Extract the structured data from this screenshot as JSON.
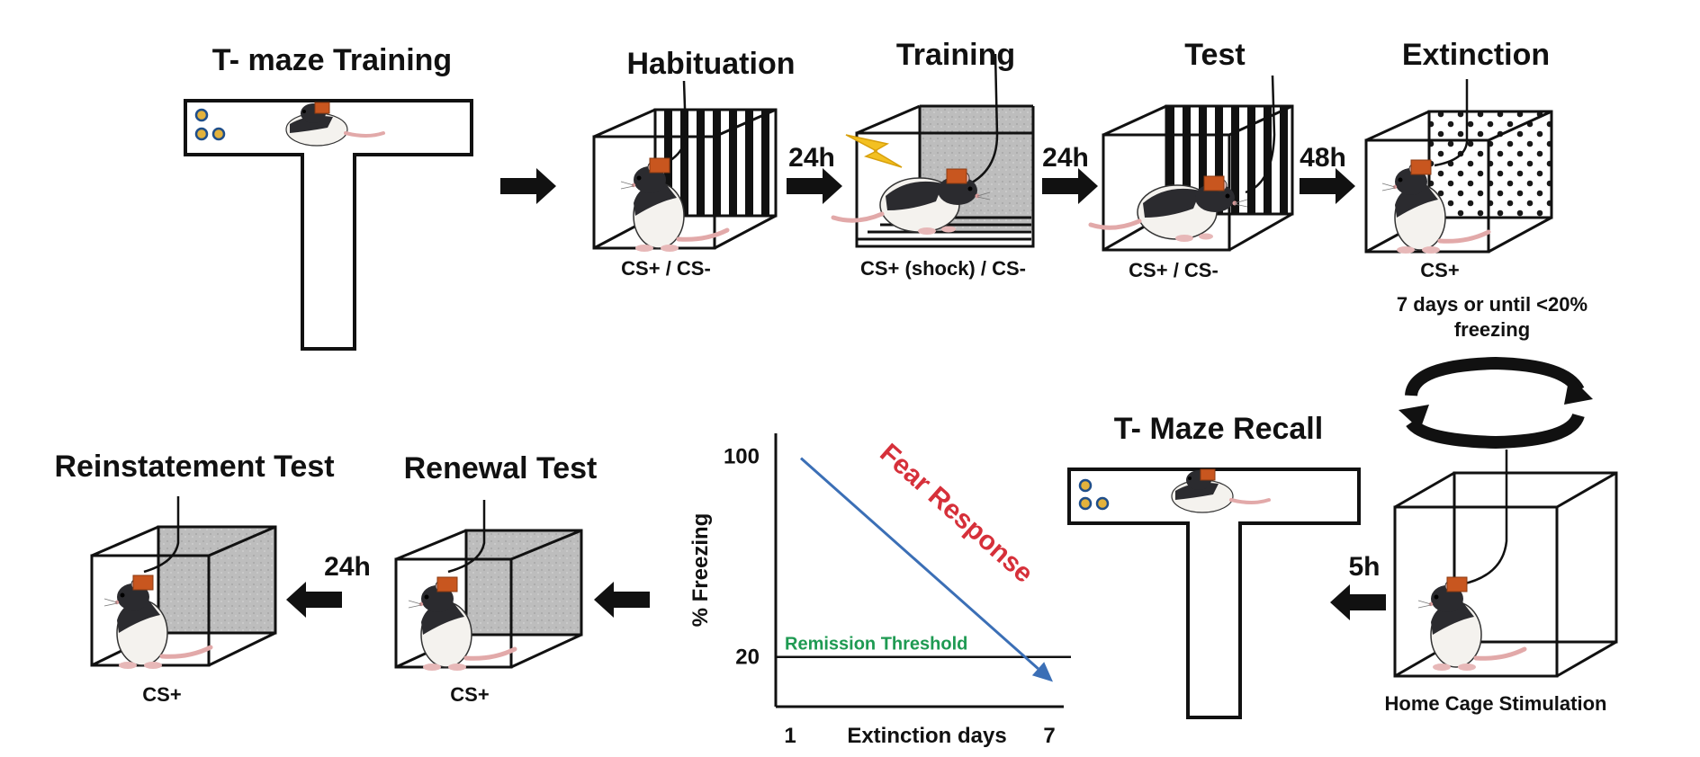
{
  "stages": {
    "tmaze_training": {
      "title": "T- maze Training"
    },
    "habituation": {
      "title": "Habituation",
      "cs": "CS+ / CS-"
    },
    "training": {
      "title": "Training",
      "cs": "CS+ (shock) / CS-"
    },
    "test": {
      "title": "Test",
      "cs": "CS+ / CS-"
    },
    "extinction": {
      "title": "Extinction",
      "cs": "CS+",
      "note_line1": "7 days or until <20%",
      "note_line2": "freezing"
    },
    "tmaze_recall": {
      "title": "T- Maze Recall"
    },
    "home_cage": {
      "caption": "Home Cage Stimulation"
    },
    "renewal": {
      "title": "Renewal Test",
      "cs": "CS+"
    },
    "reinstatement": {
      "title": "Reinstatement Test",
      "cs": "CS+"
    }
  },
  "delays": {
    "hab_to_train": "24h",
    "train_to_test": "24h",
    "test_to_ext": "48h",
    "home_to_recall": "5h",
    "renewal_to_reinstatement": "24h"
  },
  "colors": {
    "wire": "#111111",
    "implant": "#c8561f",
    "bolt": "#f3c021",
    "gray_wall": "#b9b9b9",
    "dots": "#1a1a1a",
    "fear_line": "#3b6fb6",
    "fear_text": "#d6303a",
    "threshold_text": "#1e9a52",
    "food": "#e3b23c"
  },
  "chart_data": {
    "type": "line",
    "title": "",
    "xlabel": "Extinction days",
    "ylabel": "% Freezing",
    "x_ticks": [
      "1",
      "7"
    ],
    "y_ticks": [
      "20",
      "100"
    ],
    "xlim": [
      1,
      7
    ],
    "ylim": [
      0,
      110
    ],
    "series": [
      {
        "name": "Fear Response",
        "x": [
          1,
          7
        ],
        "y": [
          100,
          10
        ]
      }
    ],
    "threshold": {
      "label": "Remission Threshold",
      "y": 20
    }
  }
}
